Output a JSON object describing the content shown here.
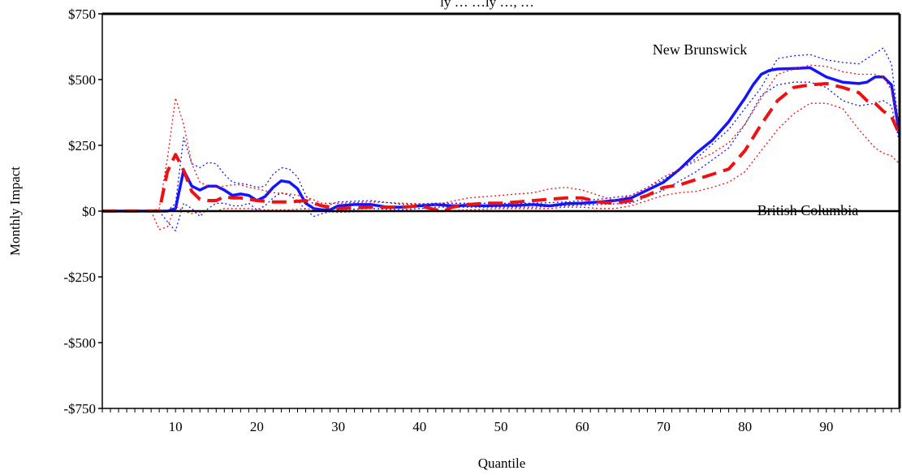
{
  "chart_data": {
    "type": "line",
    "title": "ly … …ly …, …",
    "xlabel": "Quantile",
    "ylabel": "Monthly Impact",
    "xlim": [
      1,
      99
    ],
    "ylim": [
      -750,
      750
    ],
    "x_ticks": [
      10,
      20,
      30,
      40,
      50,
      60,
      70,
      80,
      90
    ],
    "x_tick_labels": [
      "10",
      "20",
      "30",
      "40",
      "50",
      "60",
      "70",
      "80",
      "90"
    ],
    "y_ticks": [
      750,
      500,
      250,
      0,
      -250,
      -500,
      -750
    ],
    "y_tick_labels": [
      "$750",
      "$500",
      "$250",
      "$0",
      "-$250",
      "-$500",
      "-$750"
    ],
    "annotations": [
      {
        "text": "New Brunswick",
        "series": "New Brunswick"
      },
      {
        "text": "British Columbia",
        "series": "British Columbia"
      }
    ],
    "colors": {
      "new_brunswick": "#1414ff",
      "british_columbia": "#ee1111"
    },
    "series": [
      {
        "name": "New Brunswick",
        "style": "solid",
        "x": [
          1,
          5,
          8,
          9,
          10,
          11,
          12,
          13,
          14,
          15,
          16,
          17,
          18,
          19,
          20,
          21,
          22,
          23,
          24,
          25,
          26,
          27,
          28,
          29,
          30,
          32,
          34,
          36,
          38,
          40,
          42,
          44,
          46,
          48,
          50,
          52,
          54,
          56,
          58,
          60,
          62,
          64,
          66,
          68,
          70,
          72,
          74,
          76,
          78,
          80,
          81,
          82,
          83,
          84,
          86,
          88,
          90,
          92,
          94,
          95,
          96,
          97,
          98,
          99
        ],
        "values": [
          0,
          0,
          0,
          0,
          10,
          155,
          95,
          80,
          95,
          95,
          80,
          60,
          65,
          60,
          40,
          55,
          90,
          115,
          110,
          85,
          30,
          10,
          5,
          5,
          20,
          25,
          25,
          15,
          15,
          20,
          25,
          20,
          22,
          20,
          22,
          22,
          25,
          20,
          28,
          30,
          35,
          40,
          50,
          80,
          110,
          160,
          220,
          270,
          340,
          430,
          480,
          520,
          535,
          540,
          542,
          545,
          510,
          490,
          485,
          490,
          510,
          510,
          480,
          290
        ]
      },
      {
        "name": "New Brunswick upper bound",
        "style": "dotted",
        "x": [
          1,
          8,
          9,
          10,
          11,
          12,
          13,
          14,
          15,
          16,
          17,
          18,
          19,
          20,
          21,
          22,
          23,
          24,
          25,
          26,
          27,
          28,
          30,
          34,
          38,
          42,
          46,
          50,
          54,
          58,
          62,
          66,
          70,
          74,
          78,
          80,
          82,
          84,
          86,
          88,
          90,
          92,
          94,
          96,
          97,
          98,
          99
        ],
        "values": [
          0,
          0,
          0,
          30,
          280,
          180,
          165,
          185,
          180,
          140,
          110,
          105,
          100,
          90,
          95,
          140,
          165,
          160,
          130,
          60,
          25,
          15,
          35,
          40,
          25,
          30,
          30,
          30,
          30,
          35,
          45,
          60,
          120,
          200,
          310,
          390,
          470,
          580,
          590,
          595,
          575,
          565,
          560,
          600,
          620,
          560,
          300
        ]
      },
      {
        "name": "New Brunswick lower bound",
        "style": "dotted",
        "x": [
          1,
          8,
          9,
          10,
          11,
          12,
          13,
          14,
          15,
          16,
          17,
          18,
          19,
          20,
          21,
          22,
          23,
          24,
          25,
          26,
          27,
          28,
          30,
          34,
          38,
          42,
          46,
          50,
          54,
          58,
          62,
          66,
          70,
          74,
          78,
          80,
          82,
          84,
          86,
          88,
          90,
          92,
          94,
          96,
          97,
          98,
          99
        ],
        "values": [
          0,
          0,
          -40,
          -75,
          30,
          10,
          -20,
          10,
          30,
          30,
          20,
          20,
          30,
          5,
          20,
          50,
          70,
          60,
          40,
          5,
          -20,
          -10,
          5,
          10,
          5,
          15,
          15,
          15,
          15,
          20,
          25,
          30,
          80,
          150,
          240,
          330,
          440,
          480,
          490,
          490,
          470,
          420,
          400,
          410,
          420,
          400,
          260
        ]
      },
      {
        "name": "British Columbia",
        "style": "dashed",
        "x": [
          1,
          5,
          8,
          9,
          10,
          11,
          12,
          13,
          14,
          15,
          16,
          17,
          18,
          19,
          20,
          22,
          24,
          26,
          28,
          30,
          34,
          38,
          40,
          42,
          43,
          44,
          46,
          48,
          50,
          52,
          54,
          56,
          58,
          60,
          62,
          64,
          66,
          68,
          70,
          72,
          74,
          76,
          78,
          80,
          82,
          84,
          86,
          88,
          90,
          92,
          94,
          95,
          96,
          97,
          98,
          99
        ],
        "values": [
          0,
          0,
          0,
          150,
          215,
          155,
          75,
          45,
          40,
          40,
          55,
          50,
          50,
          45,
          40,
          35,
          35,
          40,
          20,
          10,
          15,
          15,
          20,
          5,
          0,
          15,
          25,
          30,
          30,
          35,
          40,
          45,
          50,
          50,
          35,
          30,
          40,
          60,
          90,
          100,
          120,
          140,
          160,
          230,
          330,
          420,
          470,
          480,
          485,
          470,
          450,
          420,
          410,
          380,
          360,
          290
        ]
      },
      {
        "name": "British Columbia upper bound",
        "style": "dotted",
        "x": [
          1,
          7,
          8,
          9,
          10,
          11,
          12,
          13,
          14,
          15,
          16,
          17,
          18,
          19,
          20,
          22,
          24,
          26,
          28,
          30,
          34,
          38,
          42,
          46,
          50,
          54,
          56,
          58,
          60,
          62,
          64,
          66,
          68,
          70,
          72,
          74,
          76,
          78,
          80,
          82,
          84,
          86,
          88,
          90,
          92,
          94,
          96,
          97,
          98,
          99
        ],
        "values": [
          0,
          0,
          10,
          200,
          430,
          330,
          180,
          110,
          95,
          90,
          95,
          100,
          100,
          90,
          85,
          70,
          65,
          55,
          30,
          30,
          35,
          30,
          25,
          50,
          60,
          70,
          85,
          90,
          80,
          60,
          40,
          60,
          90,
          130,
          160,
          190,
          220,
          260,
          330,
          430,
          520,
          540,
          555,
          550,
          530,
          520,
          520,
          510,
          460,
          310
        ]
      },
      {
        "name": "British Columbia lower bound",
        "style": "dotted",
        "x": [
          1,
          7,
          8,
          9,
          10,
          11,
          12,
          13,
          14,
          15,
          16,
          17,
          18,
          19,
          20,
          22,
          24,
          26,
          28,
          30,
          34,
          38,
          42,
          46,
          50,
          54,
          56,
          58,
          60,
          62,
          64,
          66,
          68,
          70,
          72,
          74,
          76,
          78,
          80,
          82,
          84,
          86,
          88,
          90,
          92,
          94,
          96,
          97,
          98,
          99
        ],
        "values": [
          0,
          0,
          -70,
          -60,
          20,
          0,
          -10,
          -5,
          0,
          0,
          10,
          10,
          10,
          10,
          5,
          5,
          5,
          10,
          0,
          -5,
          0,
          0,
          0,
          5,
          10,
          10,
          10,
          15,
          15,
          10,
          10,
          20,
          40,
          60,
          70,
          75,
          90,
          110,
          150,
          230,
          310,
          370,
          410,
          410,
          390,
          310,
          240,
          220,
          210,
          180
        ]
      }
    ]
  }
}
